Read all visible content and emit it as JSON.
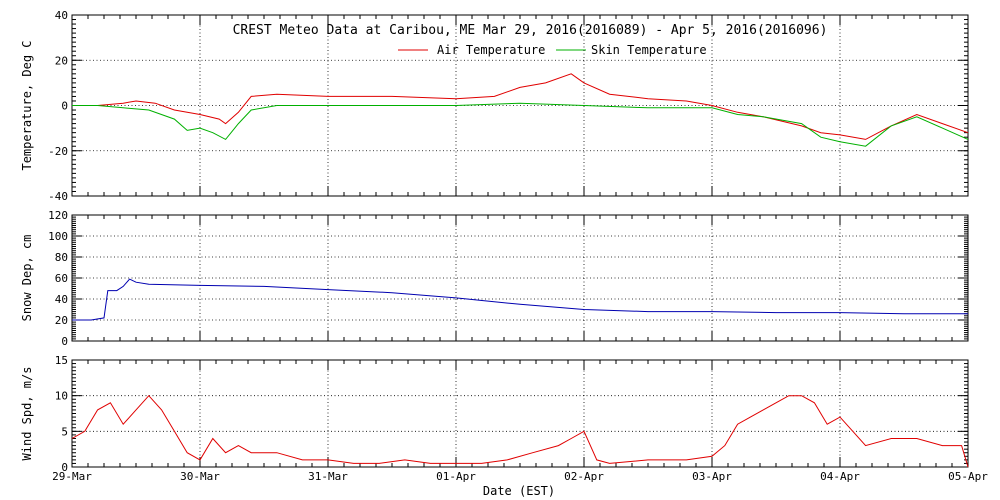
{
  "title": "CREST Meteo Data at Caribou, ME   Mar 29, 2016(2016089) - Apr  5, 2016(2016096)",
  "xlabel": "Date (EST)",
  "x_ticks": [
    "29-Mar",
    "30-Mar",
    "31-Mar",
    "01-Apr",
    "02-Apr",
    "03-Apr",
    "04-Apr",
    "05-Apr"
  ],
  "colors": {
    "air": "#e00000",
    "skin": "#00b000",
    "snow": "#0000b0",
    "wind": "#e00000"
  },
  "chart_data": [
    {
      "type": "line",
      "ylabel": "Temperature, Deg C",
      "ylim": [
        -40,
        40
      ],
      "y_ticks": [
        -40,
        -20,
        0,
        20,
        40
      ],
      "xlim": [
        0,
        7
      ],
      "grid": true,
      "legend": "top-center",
      "series": [
        {
          "name": "Air Temperature",
          "color": "#e00000",
          "x": [
            0,
            0.2,
            0.4,
            0.5,
            0.65,
            0.8,
            1.0,
            1.15,
            1.2,
            1.3,
            1.4,
            1.6,
            2.0,
            2.5,
            3.0,
            3.3,
            3.5,
            3.7,
            3.9,
            4.0,
            4.2,
            4.5,
            4.8,
            5.0,
            5.2,
            5.4,
            5.7,
            5.85,
            6.0,
            6.2,
            6.4,
            6.6,
            6.8,
            7.0
          ],
          "y": [
            0,
            0,
            1,
            2,
            1,
            -2,
            -4,
            -6,
            -8,
            -3,
            4,
            5,
            4,
            4,
            3,
            4,
            8,
            10,
            14,
            10,
            5,
            3,
            2,
            0,
            -3,
            -5,
            -9,
            -12,
            -13,
            -15,
            -9,
            -4,
            -8,
            -12
          ]
        },
        {
          "name": "Skin Temperature",
          "color": "#00b000",
          "x": [
            0,
            0.2,
            0.4,
            0.6,
            0.8,
            0.9,
            1.0,
            1.1,
            1.2,
            1.3,
            1.4,
            1.6,
            2.0,
            2.5,
            3.0,
            3.5,
            4.0,
            4.5,
            5.0,
            5.2,
            5.4,
            5.7,
            5.85,
            6.0,
            6.2,
            6.4,
            6.6,
            6.8,
            7.0
          ],
          "y": [
            0,
            0,
            -1,
            -2,
            -6,
            -11,
            -10,
            -12,
            -15,
            -8,
            -2,
            0,
            0,
            0,
            0,
            1,
            0,
            -1,
            -1,
            -4,
            -5,
            -8,
            -14,
            -16,
            -18,
            -9,
            -5,
            -10,
            -15
          ]
        }
      ]
    },
    {
      "type": "line",
      "ylabel": "Snow Dep, cm",
      "ylim": [
        0,
        120
      ],
      "y_ticks": [
        0,
        20,
        40,
        60,
        80,
        100,
        120
      ],
      "xlim": [
        0,
        7
      ],
      "grid": true,
      "series": [
        {
          "name": "",
          "color": "#0000b0",
          "x": [
            0,
            0.15,
            0.25,
            0.28,
            0.35,
            0.4,
            0.45,
            0.5,
            0.6,
            1.0,
            1.5,
            2.0,
            2.5,
            3.0,
            3.5,
            4.0,
            4.5,
            5.0,
            5.5,
            6.0,
            6.5,
            7.0
          ],
          "y": [
            20,
            20,
            22,
            48,
            48,
            52,
            59,
            56,
            54,
            53,
            52,
            49,
            46,
            41,
            35,
            30,
            28,
            28,
            27,
            27,
            26,
            26
          ]
        }
      ]
    },
    {
      "type": "line",
      "ylabel": "Wind Spd, m/s",
      "ylim": [
        0,
        15
      ],
      "y_ticks": [
        0,
        5,
        10,
        15
      ],
      "xlim": [
        0,
        7
      ],
      "grid": true,
      "series": [
        {
          "name": "",
          "color": "#e00000",
          "x": [
            0,
            0.1,
            0.2,
            0.3,
            0.4,
            0.5,
            0.6,
            0.7,
            0.8,
            0.9,
            1.0,
            1.1,
            1.2,
            1.3,
            1.4,
            1.6,
            1.8,
            2.0,
            2.2,
            2.4,
            2.6,
            2.8,
            3.0,
            3.2,
            3.4,
            3.6,
            3.8,
            3.9,
            4.0,
            4.1,
            4.2,
            4.5,
            4.8,
            5.0,
            5.1,
            5.2,
            5.3,
            5.4,
            5.5,
            5.6,
            5.7,
            5.8,
            5.9,
            6.0,
            6.1,
            6.2,
            6.4,
            6.6,
            6.8,
            6.95,
            7.0
          ],
          "y": [
            4,
            5,
            8,
            9,
            6,
            8,
            10,
            8,
            5,
            2,
            1,
            4,
            2,
            3,
            2,
            2,
            1,
            1,
            0.5,
            0.5,
            1,
            0.5,
            0.5,
            0.5,
            1,
            2,
            3,
            4,
            5,
            1,
            0.5,
            1,
            1,
            1.5,
            3,
            6,
            7,
            8,
            9,
            10,
            10,
            9,
            6,
            7,
            5,
            3,
            4,
            4,
            3,
            3,
            0
          ]
        }
      ]
    }
  ]
}
